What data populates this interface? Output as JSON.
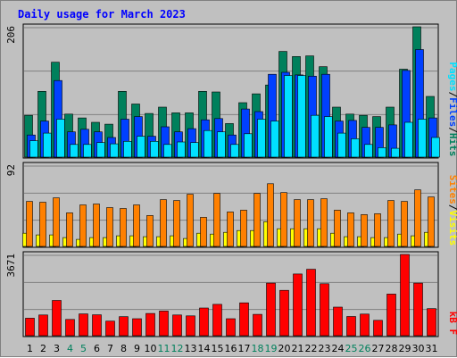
{
  "page": {
    "title": "Daily usage for March 2023"
  },
  "chart_data": [
    {
      "type": "bar",
      "panel": "top",
      "ymax_label": "206",
      "ylim": [
        0,
        206
      ],
      "grid": true,
      "categories": [
        1,
        2,
        3,
        4,
        5,
        6,
        7,
        8,
        9,
        10,
        11,
        12,
        13,
        14,
        15,
        16,
        17,
        18,
        19,
        20,
        21,
        22,
        23,
        24,
        25,
        26,
        27,
        28,
        29,
        30,
        31
      ],
      "weekend_days": [
        4,
        5,
        11,
        12,
        18,
        19,
        25,
        26
      ],
      "legend": [
        "Pages",
        "/",
        "Files",
        "/",
        "Hits"
      ],
      "series": [
        {
          "name": "Hits",
          "color": "#00805c",
          "values": [
            66,
            104,
            150,
            68,
            62,
            55,
            52,
            104,
            84,
            69,
            79,
            70,
            70,
            104,
            103,
            53,
            86,
            100,
            114,
            167,
            159,
            160,
            143,
            79,
            68,
            66,
            64,
            79,
            139,
            206,
            96
          ]
        },
        {
          "name": "Files",
          "color": "#0040ff",
          "values": [
            35,
            57,
            121,
            40,
            44,
            40,
            31,
            60,
            64,
            33,
            48,
            40,
            45,
            59,
            61,
            35,
            76,
            72,
            131,
            134,
            130,
            128,
            131,
            57,
            58,
            47,
            47,
            51,
            137,
            170,
            62
          ]
        },
        {
          "name": "Pages",
          "color": "#00e0ff",
          "values": [
            26,
            38,
            60,
            20,
            20,
            23,
            21,
            25,
            33,
            25,
            20,
            24,
            23,
            42,
            40,
            20,
            37,
            60,
            57,
            129,
            129,
            66,
            64,
            38,
            29,
            20,
            15,
            14,
            55,
            60,
            31
          ]
        }
      ]
    },
    {
      "type": "bar",
      "panel": "middle",
      "ymax_label": "92",
      "ylim": [
        0,
        92
      ],
      "grid": true,
      "categories": [
        1,
        2,
        3,
        4,
        5,
        6,
        7,
        8,
        9,
        10,
        11,
        12,
        13,
        14,
        15,
        16,
        17,
        18,
        19,
        20,
        21,
        22,
        23,
        24,
        25,
        26,
        27,
        28,
        29,
        30,
        31
      ],
      "legend": [
        "Sites",
        "/",
        "Visits"
      ],
      "series": [
        {
          "name": "Visits",
          "color": "#ffff00",
          "values": [
            15,
            13,
            13,
            10,
            8,
            10,
            10,
            12,
            12,
            11,
            11,
            12,
            9,
            15,
            14,
            16,
            18,
            18,
            28,
            20,
            20,
            20,
            20,
            15,
            11,
            11,
            10,
            10,
            14,
            12,
            16
          ]
        },
        {
          "name": "Sites",
          "color": "#ff8000",
          "values": [
            51,
            50,
            55,
            38,
            47,
            48,
            44,
            43,
            47,
            35,
            53,
            52,
            59,
            33,
            60,
            39,
            41,
            60,
            71,
            61,
            53,
            53,
            54,
            41,
            38,
            36,
            37,
            52,
            51,
            64,
            56
          ]
        }
      ]
    },
    {
      "type": "bar",
      "panel": "bottom",
      "ymax_label": "3671",
      "ylim": [
        0,
        3671
      ],
      "grid": true,
      "categories": [
        1,
        2,
        3,
        4,
        5,
        6,
        7,
        8,
        9,
        10,
        11,
        12,
        13,
        14,
        15,
        16,
        17,
        18,
        19,
        20,
        21,
        22,
        23,
        24,
        25,
        26,
        27,
        28,
        29,
        30,
        31
      ],
      "legend": [
        "kB",
        "F"
      ],
      "series": [
        {
          "name": "kB F",
          "color": "#ff0000",
          "values": [
            790,
            935,
            1595,
            735,
            986,
            945,
            657,
            859,
            766,
            1005,
            1115,
            935,
            894,
            1250,
            1417,
            766,
            1483,
            966,
            2377,
            2048,
            2788,
            3000,
            2346,
            1289,
            867,
            976,
            692,
            1880,
            3671,
            2377,
            1223
          ]
        }
      ]
    }
  ]
}
